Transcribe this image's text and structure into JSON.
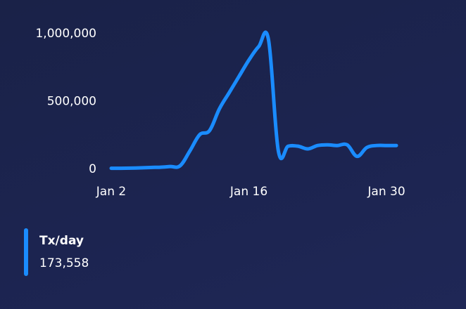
{
  "chart_data": {
    "type": "line",
    "x": [
      "Jan 2",
      "Jan 3",
      "Jan 4",
      "Jan 5",
      "Jan 6",
      "Jan 7",
      "Jan 8",
      "Jan 9",
      "Jan 10",
      "Jan 11",
      "Jan 12",
      "Jan 13",
      "Jan 14",
      "Jan 15",
      "Jan 16",
      "Jan 17",
      "Jan 18",
      "Jan 19",
      "Jan 20",
      "Jan 21",
      "Jan 22",
      "Jan 23",
      "Jan 24",
      "Jan 25",
      "Jan 26",
      "Jan 27",
      "Jan 28",
      "Jan 29",
      "Jan 30",
      "Jan 31"
    ],
    "series": [
      {
        "name": "Tx/day",
        "color": "#1a8cff",
        "values": [
          2000,
          2000,
          3000,
          5000,
          8000,
          10000,
          15000,
          20000,
          130000,
          250000,
          280000,
          440000,
          560000,
          680000,
          800000,
          900000,
          950000,
          130000,
          165000,
          165000,
          145000,
          170000,
          175000,
          170000,
          175000,
          90000,
          155000,
          170000,
          170000,
          170000
        ]
      }
    ],
    "xticks": [
      "Jan 2",
      "Jan 16",
      "Jan 30"
    ],
    "yticks": [
      0,
      500000,
      1000000
    ],
    "ytick_labels": [
      "0",
      "500,000",
      "1,000,000"
    ],
    "ylim": [
      0,
      1000000
    ],
    "grid": false,
    "legend": {
      "position": "bottom-left",
      "label": "Tx/day",
      "value": "173,558"
    }
  }
}
